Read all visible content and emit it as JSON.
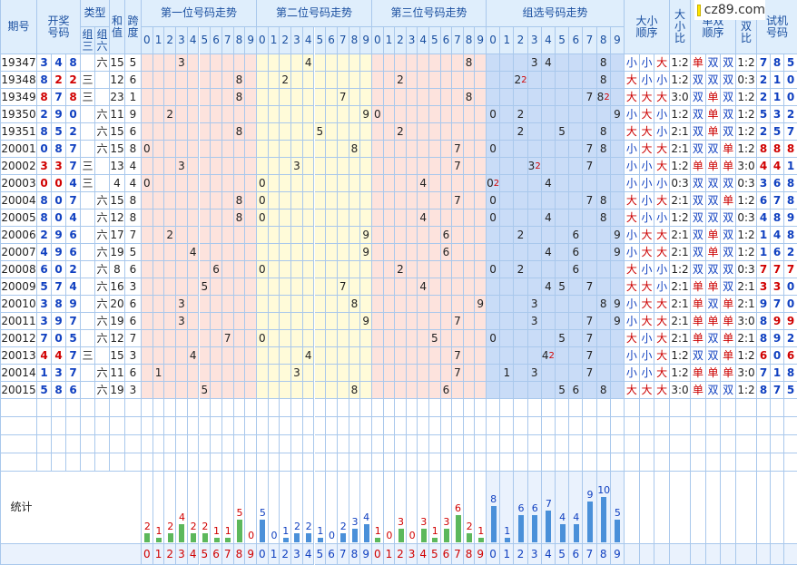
{
  "logo": "cz89.com",
  "header": {
    "period": "期号",
    "draw": "开奖号码",
    "type": "类型",
    "type_sub": [
      "组三",
      "组六"
    ],
    "sum": "和值",
    "span": "跨度",
    "sections": [
      "第一位号码走势",
      "第二位号码走势",
      "第三位号码走势",
      "组选号码走势"
    ],
    "size_order": "大小顺序",
    "size_ratio": "大小比",
    "parity_order": "单双顺序",
    "parity_ratio": "单双比",
    "test": "试机号码"
  },
  "digits": [
    0,
    1,
    2,
    3,
    4,
    5,
    6,
    7,
    8,
    9
  ],
  "mark_colors": {
    "大": "#cc0000",
    "小": "#1040c0",
    "单": "#cc0000",
    "双": "#1040c0"
  },
  "rows": [
    {
      "period": "19347",
      "draw": [
        3,
        4,
        8
      ],
      "type": "六",
      "sum": 15,
      "span": 5,
      "group": [
        3,
        4,
        8
      ],
      "size": [
        "小",
        "小",
        "大"
      ],
      "size_ratio": "1:2",
      "parity": [
        "单",
        "双",
        "双"
      ],
      "parity_ratio": "1:2",
      "test": [
        7,
        8,
        5
      ]
    },
    {
      "period": "19348",
      "draw": [
        8,
        2,
        2
      ],
      "type": "三",
      "sum": 12,
      "span": 6,
      "group": [
        {
          "value": 2,
          "times": 2
        },
        8
      ],
      "size": [
        "大",
        "小",
        "小"
      ],
      "size_ratio": "1:2",
      "parity": [
        "双",
        "双",
        "双"
      ],
      "parity_ratio": "0:3",
      "test": [
        2,
        1,
        0
      ]
    },
    {
      "period": "19349",
      "draw": [
        8,
        7,
        8
      ],
      "type": "三",
      "sum": 23,
      "span": 1,
      "group": [
        7,
        {
          "value": 8,
          "times": 2
        }
      ],
      "size": [
        "大",
        "大",
        "大"
      ],
      "size_ratio": "3:0",
      "parity": [
        "双",
        "单",
        "双"
      ],
      "parity_ratio": "1:2",
      "test": [
        2,
        1,
        0
      ]
    },
    {
      "period": "19350",
      "draw": [
        2,
        9,
        0
      ],
      "type": "六",
      "sum": 11,
      "span": 9,
      "group": [
        0,
        2,
        9
      ],
      "size": [
        "小",
        "大",
        "小"
      ],
      "size_ratio": "1:2",
      "parity": [
        "双",
        "单",
        "双"
      ],
      "parity_ratio": "1:2",
      "test": [
        5,
        3,
        2
      ]
    },
    {
      "period": "19351",
      "draw": [
        8,
        5,
        2
      ],
      "type": "六",
      "sum": 15,
      "span": 6,
      "group": [
        2,
        5,
        8
      ],
      "size": [
        "大",
        "大",
        "小"
      ],
      "size_ratio": "2:1",
      "parity": [
        "双",
        "单",
        "双"
      ],
      "parity_ratio": "1:2",
      "test": [
        2,
        5,
        7
      ]
    },
    {
      "period": "20001",
      "draw": [
        0,
        8,
        7
      ],
      "type": "六",
      "sum": 15,
      "span": 8,
      "group": [
        0,
        7,
        8
      ],
      "size": [
        "小",
        "大",
        "大"
      ],
      "size_ratio": "2:1",
      "parity": [
        "双",
        "双",
        "单"
      ],
      "parity_ratio": "1:2",
      "test": [
        8,
        8,
        8
      ]
    },
    {
      "period": "20002",
      "draw": [
        3,
        3,
        7
      ],
      "type": "三",
      "sum": 13,
      "span": 4,
      "group": [
        {
          "value": 3,
          "times": 2
        },
        7
      ],
      "size": [
        "小",
        "小",
        "大"
      ],
      "size_ratio": "1:2",
      "parity": [
        "单",
        "单",
        "单"
      ],
      "parity_ratio": "3:0",
      "test": [
        4,
        4,
        1
      ]
    },
    {
      "period": "20003",
      "draw": [
        0,
        0,
        4
      ],
      "type": "三",
      "sum": 4,
      "span": 4,
      "group": [
        {
          "value": 0,
          "times": 2
        },
        4
      ],
      "size": [
        "小",
        "小",
        "小"
      ],
      "size_ratio": "0:3",
      "parity": [
        "双",
        "双",
        "双"
      ],
      "parity_ratio": "0:3",
      "test": [
        3,
        6,
        8
      ]
    },
    {
      "period": "20004",
      "draw": [
        8,
        0,
        7
      ],
      "type": "六",
      "sum": 15,
      "span": 8,
      "group": [
        0,
        7,
        8
      ],
      "size": [
        "大",
        "小",
        "大"
      ],
      "size_ratio": "2:1",
      "parity": [
        "双",
        "双",
        "单"
      ],
      "parity_ratio": "1:2",
      "test": [
        6,
        7,
        8
      ]
    },
    {
      "period": "20005",
      "draw": [
        8,
        0,
        4
      ],
      "type": "六",
      "sum": 12,
      "span": 8,
      "group": [
        0,
        4,
        8
      ],
      "size": [
        "大",
        "小",
        "小"
      ],
      "size_ratio": "1:2",
      "parity": [
        "双",
        "双",
        "双"
      ],
      "parity_ratio": "0:3",
      "test": [
        4,
        8,
        9
      ]
    },
    {
      "period": "20006",
      "draw": [
        2,
        9,
        6
      ],
      "type": "六",
      "sum": 17,
      "span": 7,
      "group": [
        2,
        6,
        9
      ],
      "size": [
        "小",
        "大",
        "大"
      ],
      "size_ratio": "2:1",
      "parity": [
        "双",
        "单",
        "双"
      ],
      "parity_ratio": "1:2",
      "test": [
        1,
        4,
        8
      ]
    },
    {
      "period": "20007",
      "draw": [
        4,
        9,
        6
      ],
      "type": "六",
      "sum": 19,
      "span": 5,
      "group": [
        4,
        6,
        9
      ],
      "size": [
        "小",
        "大",
        "大"
      ],
      "size_ratio": "2:1",
      "parity": [
        "双",
        "单",
        "双"
      ],
      "parity_ratio": "1:2",
      "test": [
        1,
        6,
        2
      ]
    },
    {
      "period": "20008",
      "draw": [
        6,
        0,
        2
      ],
      "type": "六",
      "sum": 8,
      "span": 6,
      "group": [
        0,
        2,
        6
      ],
      "size": [
        "大",
        "小",
        "小"
      ],
      "size_ratio": "1:2",
      "parity": [
        "双",
        "双",
        "双"
      ],
      "parity_ratio": "0:3",
      "test": [
        7,
        7,
        7
      ]
    },
    {
      "period": "20009",
      "draw": [
        5,
        7,
        4
      ],
      "type": "六",
      "sum": 16,
      "span": 3,
      "group": [
        4,
        5,
        7
      ],
      "size": [
        "大",
        "大",
        "小"
      ],
      "size_ratio": "2:1",
      "parity": [
        "单",
        "单",
        "双"
      ],
      "parity_ratio": "2:1",
      "test": [
        3,
        3,
        0
      ]
    },
    {
      "period": "20010",
      "draw": [
        3,
        8,
        9
      ],
      "type": "六",
      "sum": 20,
      "span": 6,
      "group": [
        3,
        8,
        9
      ],
      "size": [
        "小",
        "大",
        "大"
      ],
      "size_ratio": "2:1",
      "parity": [
        "单",
        "双",
        "单"
      ],
      "parity_ratio": "2:1",
      "test": [
        9,
        7,
        0
      ]
    },
    {
      "period": "20011",
      "draw": [
        3,
        9,
        7
      ],
      "type": "六",
      "sum": 19,
      "span": 6,
      "group": [
        3,
        7,
        9
      ],
      "size": [
        "小",
        "大",
        "大"
      ],
      "size_ratio": "2:1",
      "parity": [
        "单",
        "单",
        "单"
      ],
      "parity_ratio": "3:0",
      "test": [
        8,
        9,
        9
      ]
    },
    {
      "period": "20012",
      "draw": [
        7,
        0,
        5
      ],
      "type": "六",
      "sum": 12,
      "span": 7,
      "group": [
        0,
        5,
        7
      ],
      "size": [
        "大",
        "小",
        "大"
      ],
      "size_ratio": "2:1",
      "parity": [
        "单",
        "双",
        "单"
      ],
      "parity_ratio": "2:1",
      "test": [
        8,
        9,
        2
      ]
    },
    {
      "period": "20013",
      "draw": [
        4,
        4,
        7
      ],
      "type": "三",
      "sum": 15,
      "span": 3,
      "group": [
        {
          "value": 4,
          "times": 2
        },
        7
      ],
      "size": [
        "小",
        "小",
        "大"
      ],
      "size_ratio": "1:2",
      "parity": [
        "双",
        "双",
        "单"
      ],
      "parity_ratio": "1:2",
      "test": [
        6,
        0,
        6
      ]
    },
    {
      "period": "20014",
      "draw": [
        1,
        3,
        7
      ],
      "type": "六",
      "sum": 11,
      "span": 6,
      "group": [
        1,
        3,
        7
      ],
      "size": [
        "小",
        "小",
        "大"
      ],
      "size_ratio": "1:2",
      "parity": [
        "单",
        "单",
        "单"
      ],
      "parity_ratio": "3:0",
      "test": [
        7,
        1,
        8
      ]
    },
    {
      "period": "20015",
      "draw": [
        5,
        8,
        6
      ],
      "type": "六",
      "sum": 19,
      "span": 3,
      "group": [
        5,
        6,
        8
      ],
      "size": [
        "大",
        "大",
        "大"
      ],
      "size_ratio": "3:0",
      "parity": [
        "单",
        "双",
        "双"
      ],
      "parity_ratio": "1:2",
      "test": [
        8,
        7,
        5
      ]
    }
  ],
  "stats": {
    "label": "统计",
    "counts": [
      [
        2,
        1,
        2,
        4,
        2,
        2,
        1,
        1,
        5,
        0
      ],
      [
        5,
        0,
        1,
        2,
        2,
        1,
        0,
        2,
        3,
        4
      ],
      [
        1,
        0,
        3,
        0,
        3,
        1,
        3,
        6,
        2,
        1
      ],
      [
        8,
        1,
        6,
        6,
        7,
        4,
        4,
        9,
        10,
        5
      ]
    ]
  }
}
